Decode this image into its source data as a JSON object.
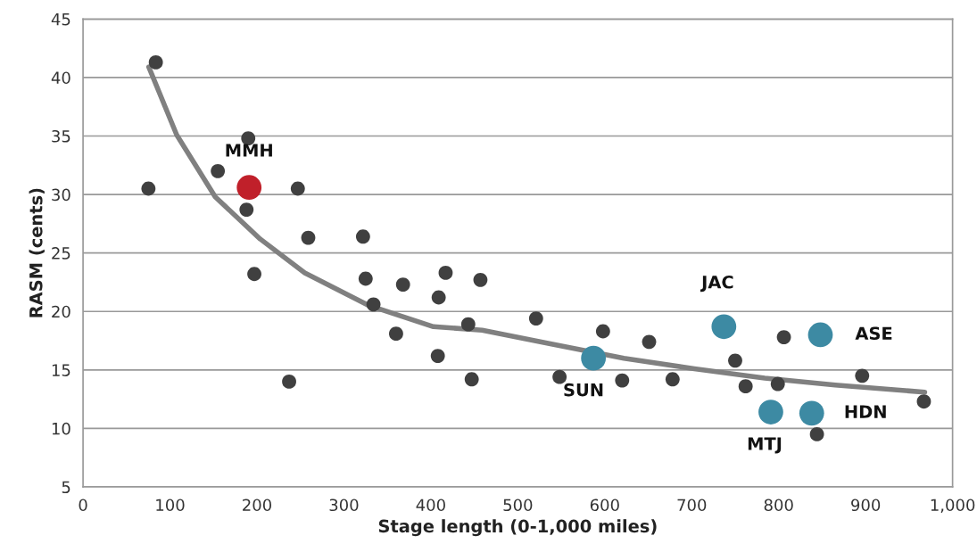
{
  "chart_data": {
    "type": "scatter",
    "xlabel": "Stage length (0-1,000 miles)",
    "ylabel": "RASM (cents)",
    "xlim": [
      0,
      1000
    ],
    "xticks": [
      0,
      100,
      200,
      300,
      400,
      500,
      600,
      700,
      800,
      900,
      {
        "value": 1000,
        "label": "1,000"
      }
    ],
    "ylim": [
      5,
      45
    ],
    "yticks": [
      5,
      10,
      15,
      20,
      25,
      30,
      35,
      40,
      45
    ],
    "grid": "y",
    "marker": "circle",
    "legend": false,
    "series": [
      {
        "color": "#404040",
        "x": [
          83.7,
          75.2,
          155,
          190,
          188,
          197,
          247,
          259,
          322,
          237,
          325,
          334,
          368,
          360,
          417,
          409,
          408,
          443,
          447,
          457,
          521,
          598,
          651,
          548,
          620,
          678,
          750,
          762,
          799,
          806,
          896,
          967,
          844
        ],
        "values": [
          41.3,
          30.5,
          32.0,
          34.8,
          28.7,
          23.2,
          30.5,
          26.3,
          26.4,
          14.0,
          22.8,
          20.6,
          22.3,
          18.1,
          23.3,
          21.2,
          16.2,
          18.9,
          14.2,
          22.7,
          19.4,
          18.3,
          17.4,
          14.4,
          14.1,
          14.2,
          15.8,
          13.6,
          13.8,
          17.8,
          14.5,
          12.3,
          9.5
        ]
      },
      {
        "type": "line",
        "color": "#808080",
        "marker": "none",
        "x": [
          75.6,
          107.7,
          152,
          203.6,
          255,
          329,
          403,
          459,
          540,
          622,
          703,
          784,
          865,
          968
        ],
        "values": [
          40.9,
          35.1,
          29.8,
          26.2,
          23.3,
          20.5,
          18.7,
          18.4,
          17.2,
          16.0,
          15.1,
          14.3,
          13.7,
          13.1
        ]
      },
      {
        "color": "#c0202a",
        "x": [
          191
        ],
        "values": [
          30.6
        ]
      },
      {
        "color": "#3d8aa3",
        "x": [
          587,
          737,
          848,
          791,
          838
        ],
        "values": [
          16.0,
          18.7,
          18.0,
          11.4,
          11.3
        ]
      }
    ],
    "annotations": [
      {
        "text": "MMH",
        "x": 191,
        "y": 30.6
      },
      {
        "text": "JAC",
        "x": 737,
        "y": 18.7
      },
      {
        "text": "ASE",
        "x": 848,
        "y": 18.0
      },
      {
        "text": "SUN",
        "x": 587,
        "y": 16.0
      },
      {
        "text": "MTJ",
        "x": 791,
        "y": 11.4
      },
      {
        "text": "HDN",
        "x": 838,
        "y": 11.3
      }
    ]
  }
}
